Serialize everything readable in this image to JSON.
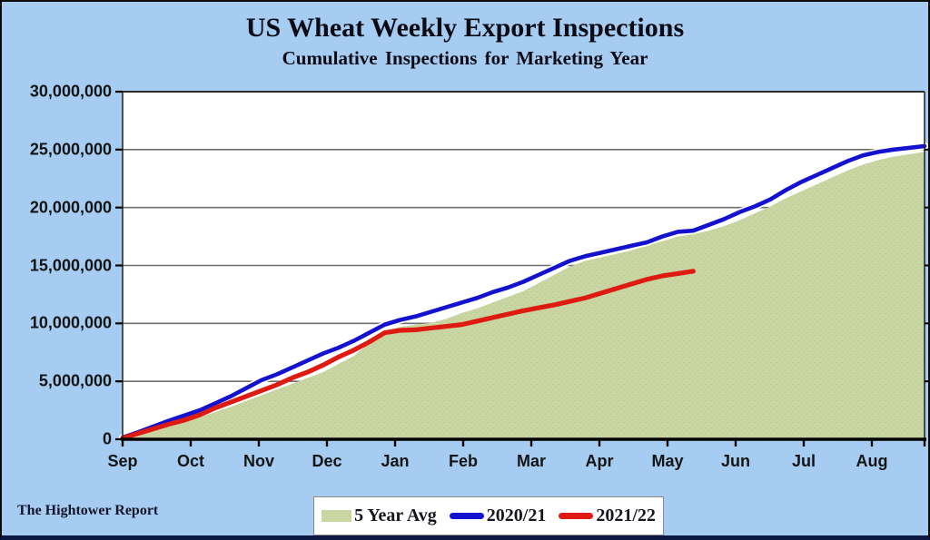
{
  "page": {
    "title": "US Wheat Weekly Export Inspections",
    "subtitle": "Cumulative Inspections for Marketing Year",
    "footer_brand": "The Hightower Report",
    "background_color": "#A6CDF1",
    "plot_background": "#FFFFFF"
  },
  "legend": {
    "position": "bottom-center",
    "items": [
      {
        "label": "5 Year Avg",
        "swatch": "area",
        "color": "#C9D6A2"
      },
      {
        "label": "2020/21",
        "swatch": "line",
        "color": "#1212CF"
      },
      {
        "label": "2021/22",
        "swatch": "line",
        "color": "#DE1B10"
      }
    ]
  },
  "chart_data": {
    "type": "area",
    "title": "US Wheat Weekly Export Inspections",
    "subtitle": "Cumulative Inspections for Marketing Year",
    "xlabel": "",
    "ylabel": "",
    "x_tick_labels": [
      "Sep",
      "Oct",
      "Nov",
      "Dec",
      "Jan",
      "Feb",
      "Mar",
      "Apr",
      "May",
      "Jun",
      "Jul",
      "Aug"
    ],
    "x_resolution": "weekly, 52 weeks Sep through Aug",
    "ylim": [
      0,
      30000000
    ],
    "y_tick_interval": 5000000,
    "y_tick_labels": [
      "0",
      "5,000,000",
      "10,000,000",
      "15,000,000",
      "20,000,000",
      "25,000,000",
      "30,000,000"
    ],
    "grid": "horizontal",
    "unit_multiplier": 1000000,
    "series": [
      {
        "name": "5 Year Avg",
        "style": "area",
        "color": "#C9D6A2",
        "values_millions": [
          0.1,
          0.4,
          0.75,
          1.1,
          1.45,
          1.9,
          2.35,
          2.8,
          3.3,
          3.8,
          4.3,
          4.8,
          5.3,
          5.8,
          6.5,
          7.2,
          8.3,
          9.3,
          9.7,
          9.9,
          10.05,
          10.4,
          10.9,
          11.3,
          11.8,
          12.3,
          12.8,
          13.5,
          14.2,
          14.9,
          15.4,
          15.7,
          16.0,
          16.3,
          16.7,
          17.1,
          17.5,
          17.7,
          18.0,
          18.4,
          18.9,
          19.5,
          20.1,
          20.8,
          21.4,
          22.0,
          22.6,
          23.2,
          23.7,
          24.1,
          24.4,
          24.6,
          24.8
        ]
      },
      {
        "name": "2020/21",
        "style": "line",
        "color": "#1212CF",
        "halo_color": "#FFFFFF",
        "values_millions": [
          0.15,
          0.6,
          1.1,
          1.6,
          2.05,
          2.5,
          3.1,
          3.7,
          4.4,
          5.1,
          5.6,
          6.2,
          6.8,
          7.4,
          7.9,
          8.5,
          9.2,
          9.9,
          10.3,
          10.6,
          11.0,
          11.4,
          11.8,
          12.2,
          12.7,
          13.1,
          13.6,
          14.2,
          14.8,
          15.4,
          15.8,
          16.1,
          16.4,
          16.7,
          17.0,
          17.5,
          17.9,
          18.0,
          18.5,
          19.0,
          19.6,
          20.1,
          20.7,
          21.5,
          22.2,
          22.8,
          23.4,
          24.0,
          24.5,
          24.8,
          25.0,
          25.15,
          25.3
        ]
      },
      {
        "name": "2021/22",
        "style": "line",
        "color": "#DE1B10",
        "values_millions": [
          0.1,
          0.5,
          0.9,
          1.3,
          1.65,
          2.1,
          2.7,
          3.2,
          3.7,
          4.2,
          4.7,
          5.3,
          5.8,
          6.4,
          7.1,
          7.7,
          8.4,
          9.2,
          9.4,
          9.45,
          9.6,
          9.75,
          9.9,
          10.2,
          10.5,
          10.8,
          11.1,
          11.35,
          11.6,
          11.9,
          12.2,
          12.6,
          13.0,
          13.4,
          13.8,
          14.1,
          14.3,
          14.5
        ]
      }
    ]
  }
}
